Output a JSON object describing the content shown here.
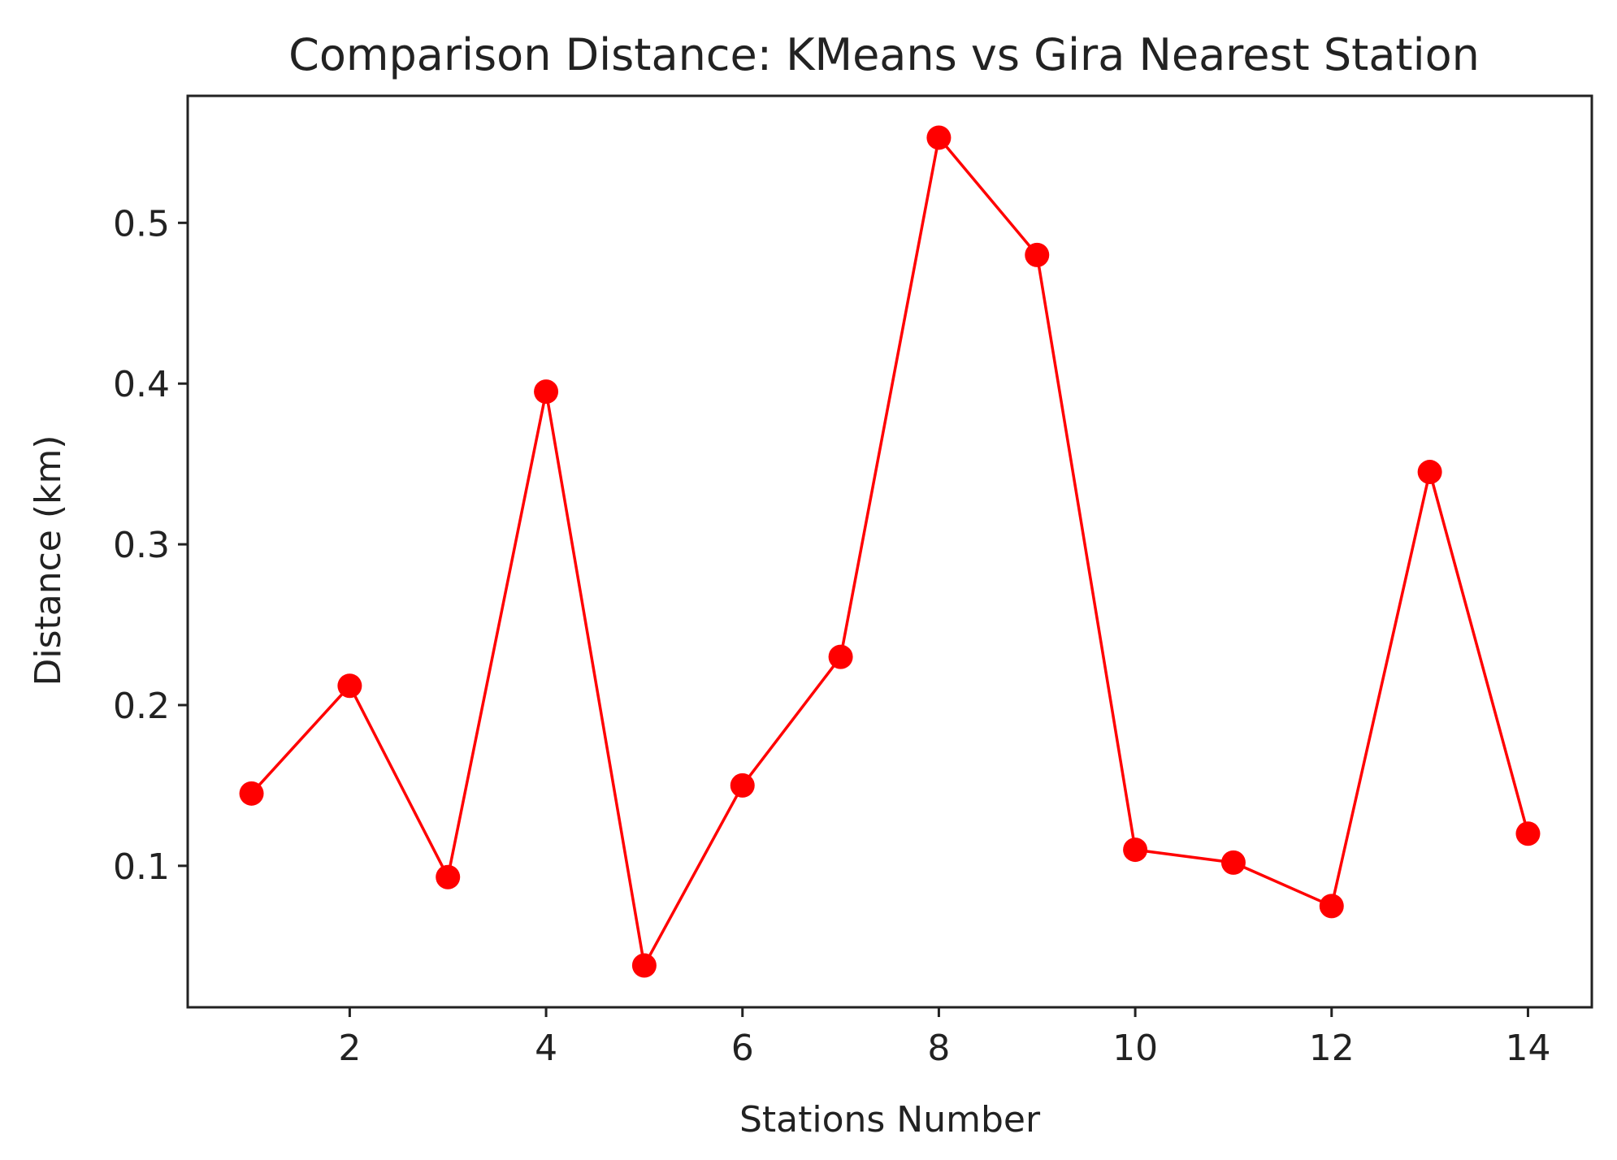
{
  "chart_data": {
    "type": "line",
    "title": "Comparison Distance: KMeans vs Gira Nearest Station",
    "xlabel": "Stations Number",
    "ylabel": "Distance (km)",
    "x": [
      1,
      2,
      3,
      4,
      5,
      6,
      7,
      8,
      9,
      10,
      11,
      12,
      13,
      14
    ],
    "series": [
      {
        "values": [
          0.145,
          0.212,
          0.093,
          0.395,
          0.038,
          0.15,
          0.23,
          0.553,
          0.48,
          0.11,
          0.102,
          0.075,
          0.345,
          0.12
        ],
        "color": "#ff0000",
        "marker": "circle"
      }
    ],
    "xlim": [
      0.35,
      14.65
    ],
    "ylim": [
      0.012,
      0.579
    ],
    "xticks": [
      2,
      4,
      6,
      8,
      10,
      12,
      14
    ],
    "xtick_labels": [
      "2",
      "4",
      "6",
      "8",
      "10",
      "12",
      "14"
    ],
    "yticks": [
      0.1,
      0.2,
      0.3,
      0.4,
      0.5
    ],
    "ytick_labels": [
      "0.1",
      "0.2",
      "0.3",
      "0.4",
      "0.5"
    ],
    "grid": false,
    "legend": "none"
  }
}
